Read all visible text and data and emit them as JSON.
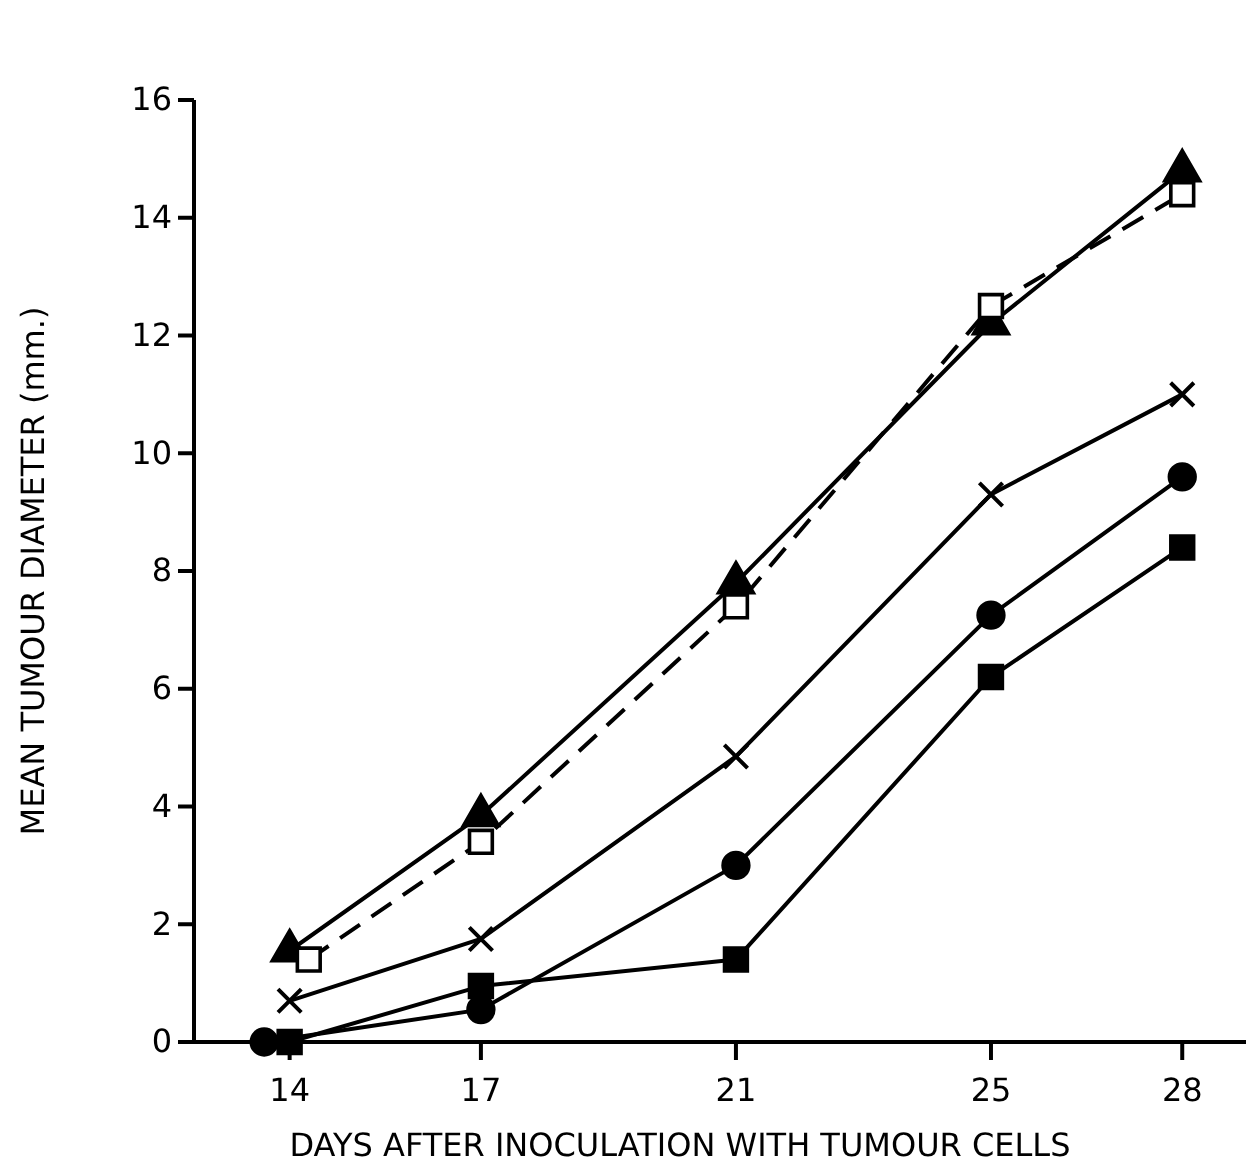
{
  "chart_data": {
    "type": "line",
    "xlabel": "DAYS AFTER INOCULATION WITH TUMOUR CELLS",
    "ylabel": "MEAN TUMOUR DIAMETER (mm.)",
    "xlim": [
      12.5,
      29
    ],
    "xticks": [
      14,
      17,
      21,
      25,
      28
    ],
    "ylim": [
      0,
      16
    ],
    "yticks": [
      0,
      2,
      4,
      6,
      8,
      10,
      12,
      14,
      16
    ],
    "grid": false,
    "series": [
      {
        "color": "#000000",
        "marker": "triangle",
        "line_style": "solid",
        "x": [
          14,
          17,
          21,
          25,
          28
        ],
        "values": [
          1.55,
          3.85,
          7.8,
          12.2,
          14.8
        ]
      },
      {
        "color": "#000000",
        "marker": "square",
        "line_style": "dashed",
        "x": [
          14.3,
          17,
          21,
          25,
          28
        ],
        "values": [
          1.4,
          3.4,
          7.4,
          12.5,
          14.4
        ]
      },
      {
        "color": "#000000",
        "marker": "cross",
        "line_style": "solid",
        "x": [
          14,
          17,
          21,
          25,
          28
        ],
        "values": [
          0.7,
          1.75,
          4.85,
          9.3,
          11
        ]
      },
      {
        "color": "#000000",
        "marker": "circle",
        "line_style": "solid",
        "x": [
          13.6,
          17,
          21,
          25,
          28
        ],
        "values": [
          0,
          0.55,
          3,
          7.25,
          9.6
        ]
      },
      {
        "color": "#000000",
        "marker": "square",
        "line_style": "solid",
        "x": [
          14,
          17,
          21,
          25,
          28
        ],
        "values": [
          0,
          0.95,
          1.4,
          6.2,
          8.4
        ]
      }
    ]
  }
}
